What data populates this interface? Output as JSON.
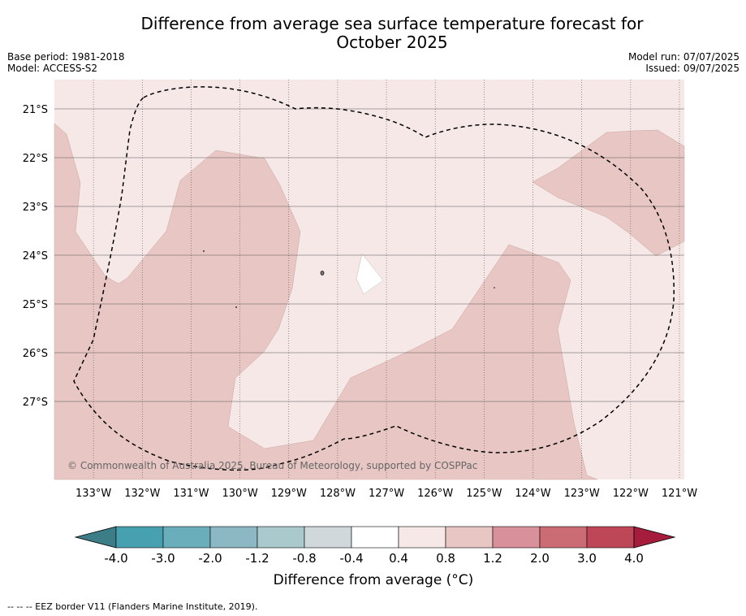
{
  "title": "Difference from average sea surface temperature forecast for October 2025",
  "title_lines": [
    "Difference from average sea surface temperature forecast for",
    "October 2025"
  ],
  "base_period": "Base period: 1981-2018",
  "model": "Model: ACCESS-S2",
  "model_run": "Model run: 07/07/2025",
  "issued": "Issued: 09/07/2025",
  "copyright": "© Commonwealth of Australia 2025, Bureau of Meteorology, supported by COSPPac",
  "footnote": "--  --  -- EEZ border V11 (Flanders Marine Institute, 2019).",
  "map": {
    "lon_range": [
      -133.8,
      -120.9
    ],
    "lat_range": [
      -28.6,
      -20.4
    ],
    "lon_ticks": [
      {
        "value": -133,
        "label": "133°W"
      },
      {
        "value": -132,
        "label": "132°W"
      },
      {
        "value": -131,
        "label": "131°W"
      },
      {
        "value": -130,
        "label": "130°W"
      },
      {
        "value": -129,
        "label": "129°W"
      },
      {
        "value": -128,
        "label": "128°W"
      },
      {
        "value": -127,
        "label": "127°W"
      },
      {
        "value": -126,
        "label": "126°W"
      },
      {
        "value": -125,
        "label": "125°W"
      },
      {
        "value": -124,
        "label": "124°W"
      },
      {
        "value": -123,
        "label": "123°W"
      },
      {
        "value": -122,
        "label": "122°W"
      },
      {
        "value": -121,
        "label": "121°W"
      }
    ],
    "lat_ticks": [
      {
        "value": -21,
        "label": "21°S"
      },
      {
        "value": -22,
        "label": "22°S"
      },
      {
        "value": -23,
        "label": "23°S"
      },
      {
        "value": -24,
        "label": "24°S"
      },
      {
        "value": -25,
        "label": "25°S"
      },
      {
        "value": -26,
        "label": "26°S"
      },
      {
        "value": -27,
        "label": "27°S"
      }
    ],
    "background_class": "0.4 to 0.8",
    "colors": {
      "bg": "#f5e8e7",
      "warm": "#e7c6c3",
      "neutral": "#ffffff",
      "grid": "#555555"
    }
  },
  "colorbar": {
    "title": "Difference from average (°C)",
    "tick_labels": [
      "-4.0",
      "-3.0",
      "-2.0",
      "-1.2",
      "-0.8",
      "-0.4",
      "0.4",
      "0.8",
      "1.2",
      "2.0",
      "3.0",
      "4.0"
    ],
    "colors": [
      "#3c7d87",
      "#47a0b0",
      "#6aaebb",
      "#8bb8c3",
      "#a9c9cd",
      "#d0d8db",
      "#ffffff",
      "#f5e8e7",
      "#e7c6c3",
      "#d8919a",
      "#cb6b74",
      "#be4757",
      "#a61c3c"
    ]
  }
}
